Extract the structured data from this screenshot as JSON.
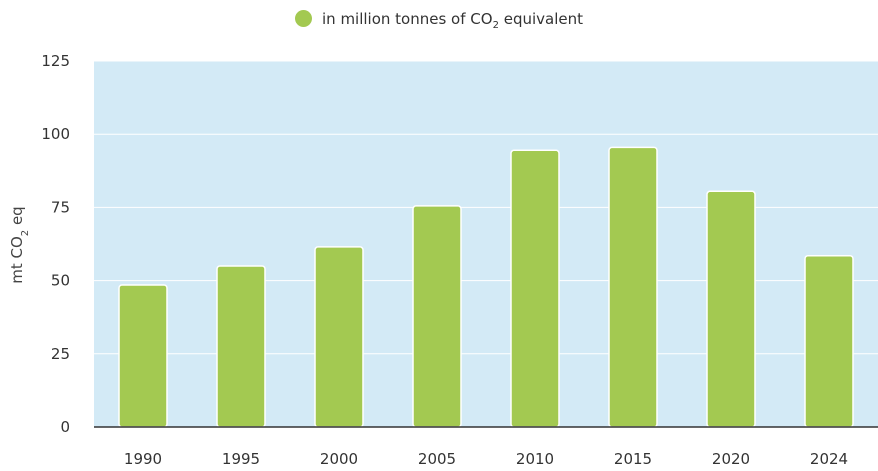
{
  "legend": {
    "label_main": "in million tonnes of CO",
    "label_sub": "2",
    "label_tail": " equivalent"
  },
  "chart_data": {
    "type": "bar",
    "categories": [
      "1990",
      "1995",
      "2000",
      "2005",
      "2010",
      "2015",
      "2020",
      "2024"
    ],
    "values": [
      48.5,
      55,
      61.5,
      75.5,
      94.5,
      95.5,
      80.5,
      58.5
    ],
    "series": [
      {
        "name": "in million tonnes of CO₂ equivalent",
        "values": [
          48.5,
          55,
          61.5,
          75.5,
          94.5,
          95.5,
          80.5,
          58.5
        ]
      }
    ],
    "ylabel_main": "mt CO",
    "ylabel_sub": "2",
    "ylabel_tail": " eq",
    "ylim": [
      0,
      125
    ],
    "yticks": [
      0,
      25,
      50,
      75,
      100,
      125
    ],
    "grid": true,
    "legend_position": "top-center",
    "colors": {
      "bar": "#a3c951",
      "plot_bg": "#d3eaf6",
      "grid": "#ffffff"
    }
  }
}
